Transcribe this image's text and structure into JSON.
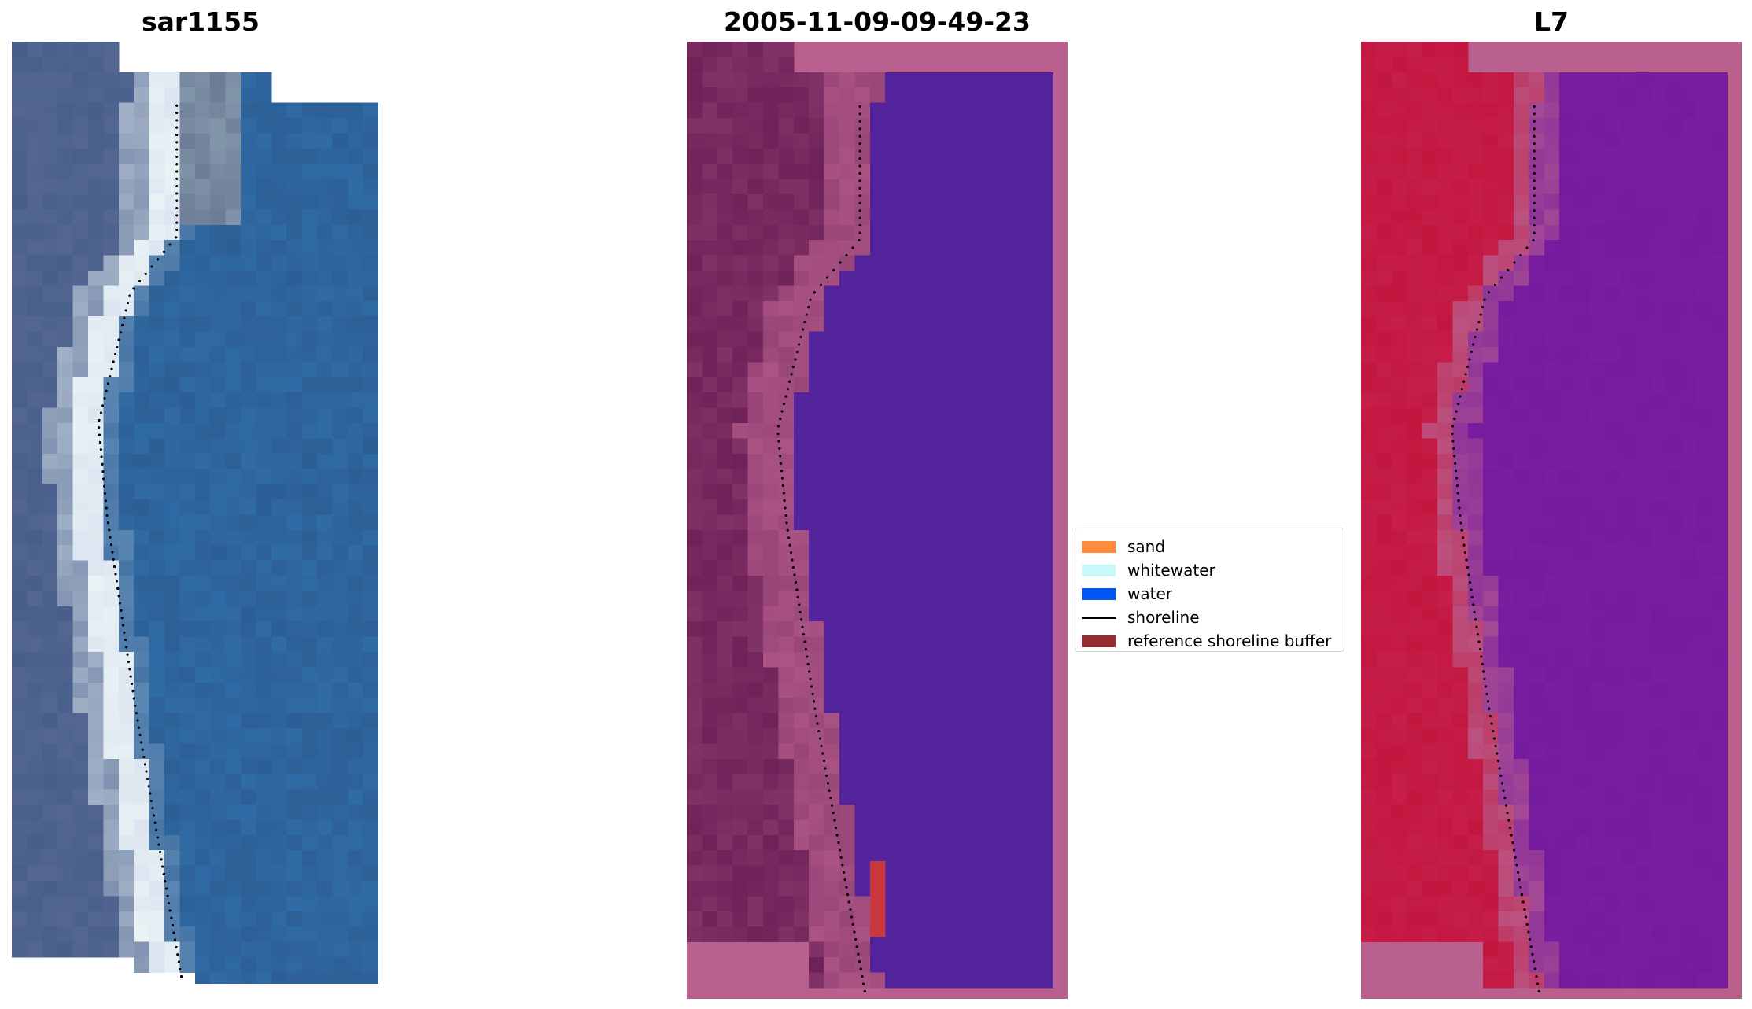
{
  "panels": [
    {
      "title": "sar1155",
      "kind": "rgb-satellite"
    },
    {
      "title": "2005-11-09-09-49-23",
      "kind": "classified"
    },
    {
      "title": "L7",
      "kind": "index-map"
    }
  ],
  "legend": {
    "items": [
      {
        "label": "sand",
        "type": "patch",
        "color": "#ff8c3c"
      },
      {
        "label": "whitewater",
        "type": "patch",
        "color": "#c8fafa"
      },
      {
        "label": "water",
        "type": "patch",
        "color": "#0055f5"
      },
      {
        "label": "shoreline",
        "type": "line",
        "color": "#000000"
      },
      {
        "label": "reference shoreline buffer",
        "type": "patch",
        "color": "#962d32"
      }
    ]
  },
  "colors": {
    "buffer_pink": "#b9608f",
    "land_dark": "#6e2258",
    "water_class": "#52239b",
    "index_land": "#c2173f",
    "index_water": "#7a1d9f",
    "sea": "#2c5f95",
    "whitewater_rgb": "#e8f1f4",
    "red_patch": "#c8383e"
  }
}
